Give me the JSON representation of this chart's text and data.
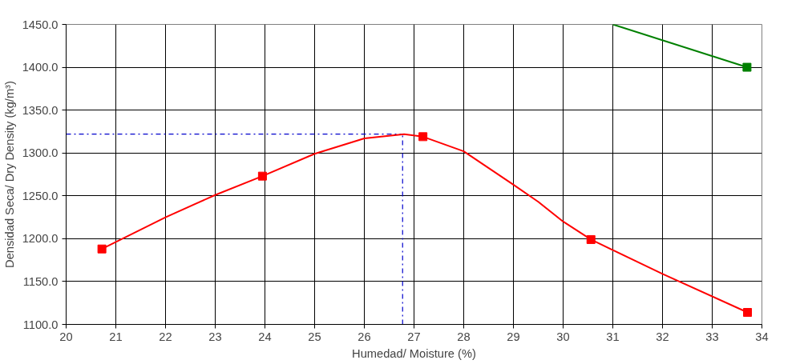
{
  "chart_data": {
    "type": "line",
    "xlabel": "Humedad/ Moisture (%)",
    "ylabel": "Densidad Seca/ Dry Density (kg/m³)",
    "xlim": [
      20,
      34
    ],
    "xticks": [
      20,
      21,
      22,
      23,
      24,
      25,
      26,
      27,
      28,
      29,
      30,
      31,
      32,
      33,
      34
    ],
    "ylim": [
      1100,
      1450
    ],
    "yticks": [
      {
        "value": 1100,
        "label": "1100.0"
      },
      {
        "value": 1150,
        "label": "1150.0"
      },
      {
        "value": 1200,
        "label": "1200.0"
      },
      {
        "value": 1250,
        "label": "1250.0"
      },
      {
        "value": 1300,
        "label": "1300.0"
      },
      {
        "value": 1350,
        "label": "1350.0"
      },
      {
        "value": 1400,
        "label": "1400.0"
      },
      {
        "value": 1450,
        "label": "1450.0"
      }
    ],
    "grid": true,
    "series": [
      {
        "color": "#ff0000",
        "marker": "none",
        "x": [
          20.72,
          22,
          23,
          23.95,
          25,
          26,
          26.8,
          27.18,
          28,
          29,
          29.5,
          30,
          30.56,
          32,
          33.71
        ],
        "values": [
          1188,
          1225,
          1251,
          1273,
          1299,
          1317,
          1322,
          1319,
          1302,
          1263,
          1243,
          1220,
          1199,
          1159,
          1114
        ]
      },
      {
        "type": "scatter",
        "color": "#ff0000",
        "marker": "square",
        "x": [
          20.72,
          23.95,
          27.18,
          30.56,
          33.71
        ],
        "values": [
          1188,
          1273,
          1319,
          1199,
          1114
        ]
      },
      {
        "color": "#008000",
        "marker": "none",
        "x": [
          31.0,
          33.7
        ],
        "values": [
          1450,
          1400
        ]
      },
      {
        "type": "scatter",
        "color": "#008000",
        "marker": "square",
        "x": [
          33.7
        ],
        "values": [
          1400
        ]
      }
    ],
    "ref_lines": [
      {
        "axis": "x",
        "value": 26.77,
        "color": "#0000cc",
        "line_style": "dashdot"
      },
      {
        "axis": "y",
        "value": 1322,
        "color": "#0000cc",
        "line_style": "dashdot"
      }
    ]
  }
}
